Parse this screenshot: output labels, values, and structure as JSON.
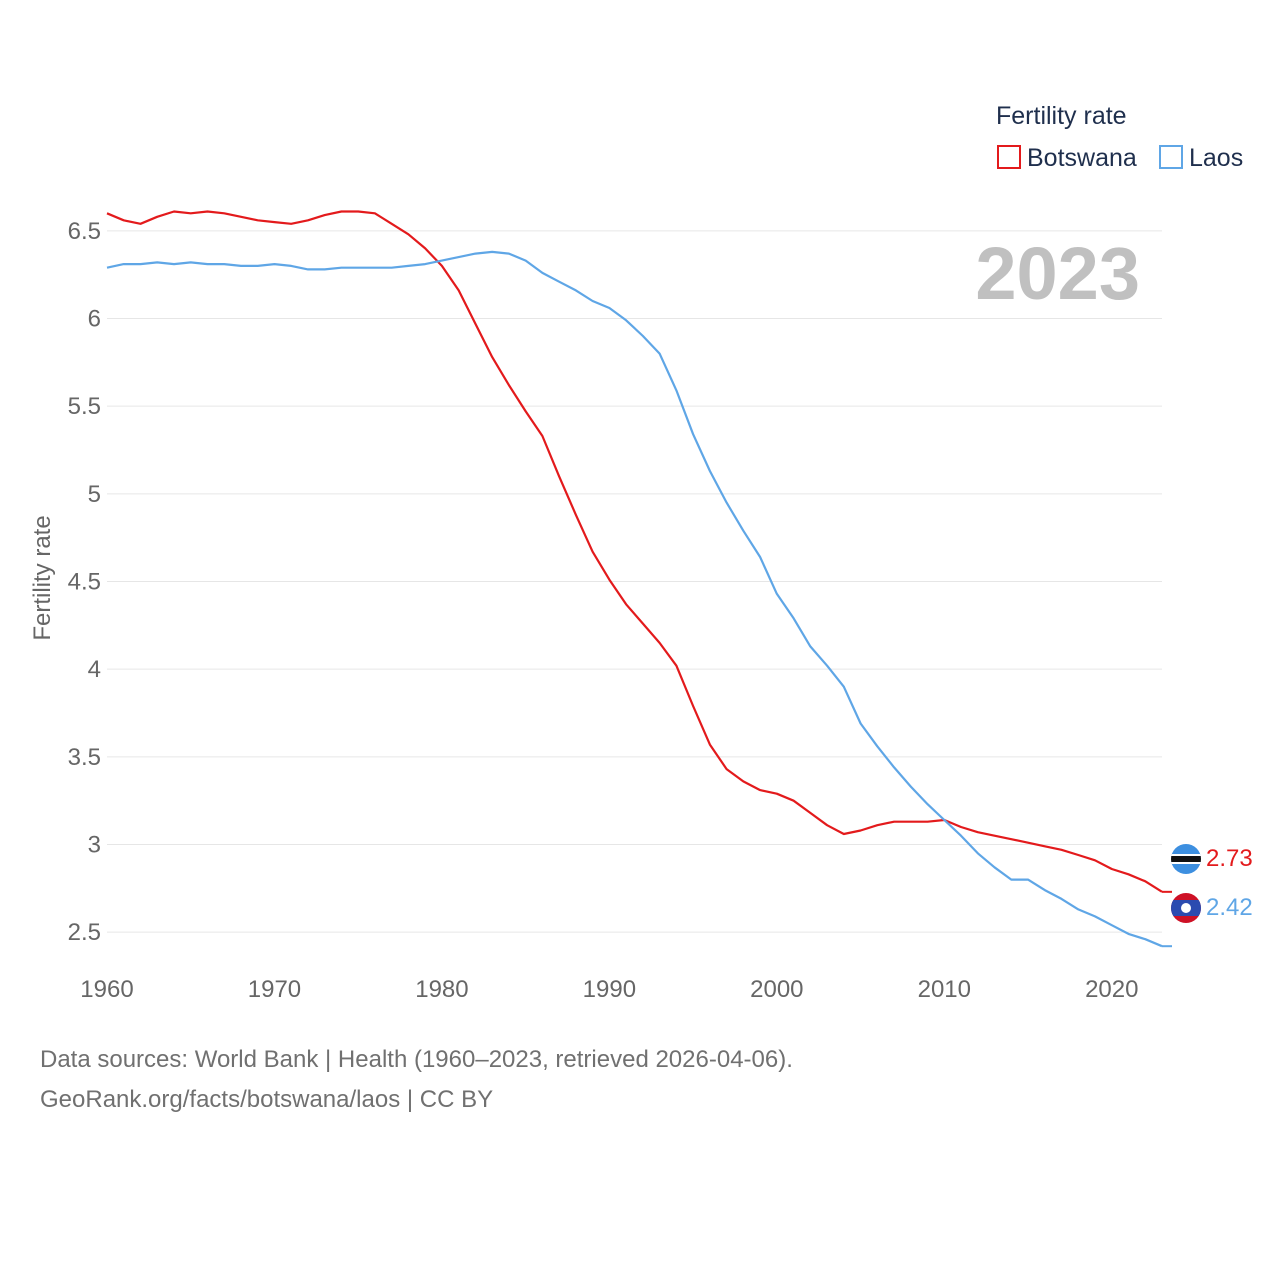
{
  "chart_data": {
    "type": "line",
    "title": "",
    "xlabel": "",
    "ylabel": "Fertility rate",
    "xlim": [
      1960,
      2023
    ],
    "ylim": [
      2.25,
      6.75
    ],
    "x_ticks": [
      1960,
      1970,
      1980,
      1990,
      2000,
      2010,
      2020
    ],
    "x_tick_labels": [
      "1960",
      "1970",
      "1980",
      "1990",
      "2000",
      "2010",
      "2020"
    ],
    "y_ticks": [
      2.5,
      3,
      3.5,
      4,
      4.5,
      5,
      5.5,
      6,
      6.5
    ],
    "y_tick_labels": [
      "2.5",
      "3",
      "3.5",
      "4",
      "4.5",
      "5",
      "5.5",
      "6",
      "6.5"
    ],
    "grid": true,
    "legend": {
      "title": "Fertility rate",
      "position": "top-right"
    },
    "year_label": "2023",
    "x": [
      1960,
      1961,
      1962,
      1963,
      1964,
      1965,
      1966,
      1967,
      1968,
      1969,
      1970,
      1971,
      1972,
      1973,
      1974,
      1975,
      1976,
      1977,
      1978,
      1979,
      1980,
      1981,
      1982,
      1983,
      1984,
      1985,
      1986,
      1987,
      1988,
      1989,
      1990,
      1991,
      1992,
      1993,
      1994,
      1995,
      1996,
      1997,
      1998,
      1999,
      2000,
      2001,
      2002,
      2003,
      2004,
      2005,
      2006,
      2007,
      2008,
      2009,
      2010,
      2011,
      2012,
      2013,
      2014,
      2015,
      2016,
      2017,
      2018,
      2019,
      2020,
      2021,
      2022,
      2023
    ],
    "series": [
      {
        "name": "Botswana",
        "color": "#e31a1c",
        "end_label": "2.73",
        "flag": "botswana-flag-icon",
        "values": [
          6.6,
          6.56,
          6.54,
          6.58,
          6.61,
          6.6,
          6.61,
          6.6,
          6.58,
          6.56,
          6.55,
          6.54,
          6.56,
          6.59,
          6.61,
          6.61,
          6.6,
          6.54,
          6.48,
          6.4,
          6.3,
          6.16,
          5.97,
          5.78,
          5.62,
          5.47,
          5.33,
          5.1,
          4.88,
          4.67,
          4.51,
          4.37,
          4.26,
          4.15,
          4.02,
          3.79,
          3.57,
          3.43,
          3.36,
          3.31,
          3.29,
          3.25,
          3.18,
          3.11,
          3.06,
          3.08,
          3.11,
          3.13,
          3.13,
          3.13,
          3.14,
          3.1,
          3.07,
          3.05,
          3.03,
          3.01,
          2.99,
          2.97,
          2.94,
          2.91,
          2.86,
          2.83,
          2.79,
          2.73
        ]
      },
      {
        "name": "Laos",
        "color": "#5fa6e6",
        "end_label": "2.42",
        "flag": "laos-flag-icon",
        "values": [
          6.29,
          6.31,
          6.31,
          6.32,
          6.31,
          6.32,
          6.31,
          6.31,
          6.3,
          6.3,
          6.31,
          6.3,
          6.28,
          6.28,
          6.29,
          6.29,
          6.29,
          6.29,
          6.3,
          6.31,
          6.33,
          6.35,
          6.37,
          6.38,
          6.37,
          6.33,
          6.26,
          6.21,
          6.16,
          6.1,
          6.06,
          5.99,
          5.9,
          5.8,
          5.59,
          5.34,
          5.13,
          4.95,
          4.79,
          4.64,
          4.43,
          4.29,
          4.13,
          4.02,
          3.9,
          3.69,
          3.56,
          3.44,
          3.33,
          3.23,
          3.14,
          3.05,
          2.95,
          2.87,
          2.8,
          2.8,
          2.74,
          2.69,
          2.63,
          2.59,
          2.54,
          2.49,
          2.46,
          2.42
        ]
      }
    ]
  },
  "footer": {
    "sources": "Data sources: World Bank | Health (1960–2023, retrieved 2026-04-06).",
    "link": "GeoRank.org/facts/botswana/laos | CC BY"
  }
}
